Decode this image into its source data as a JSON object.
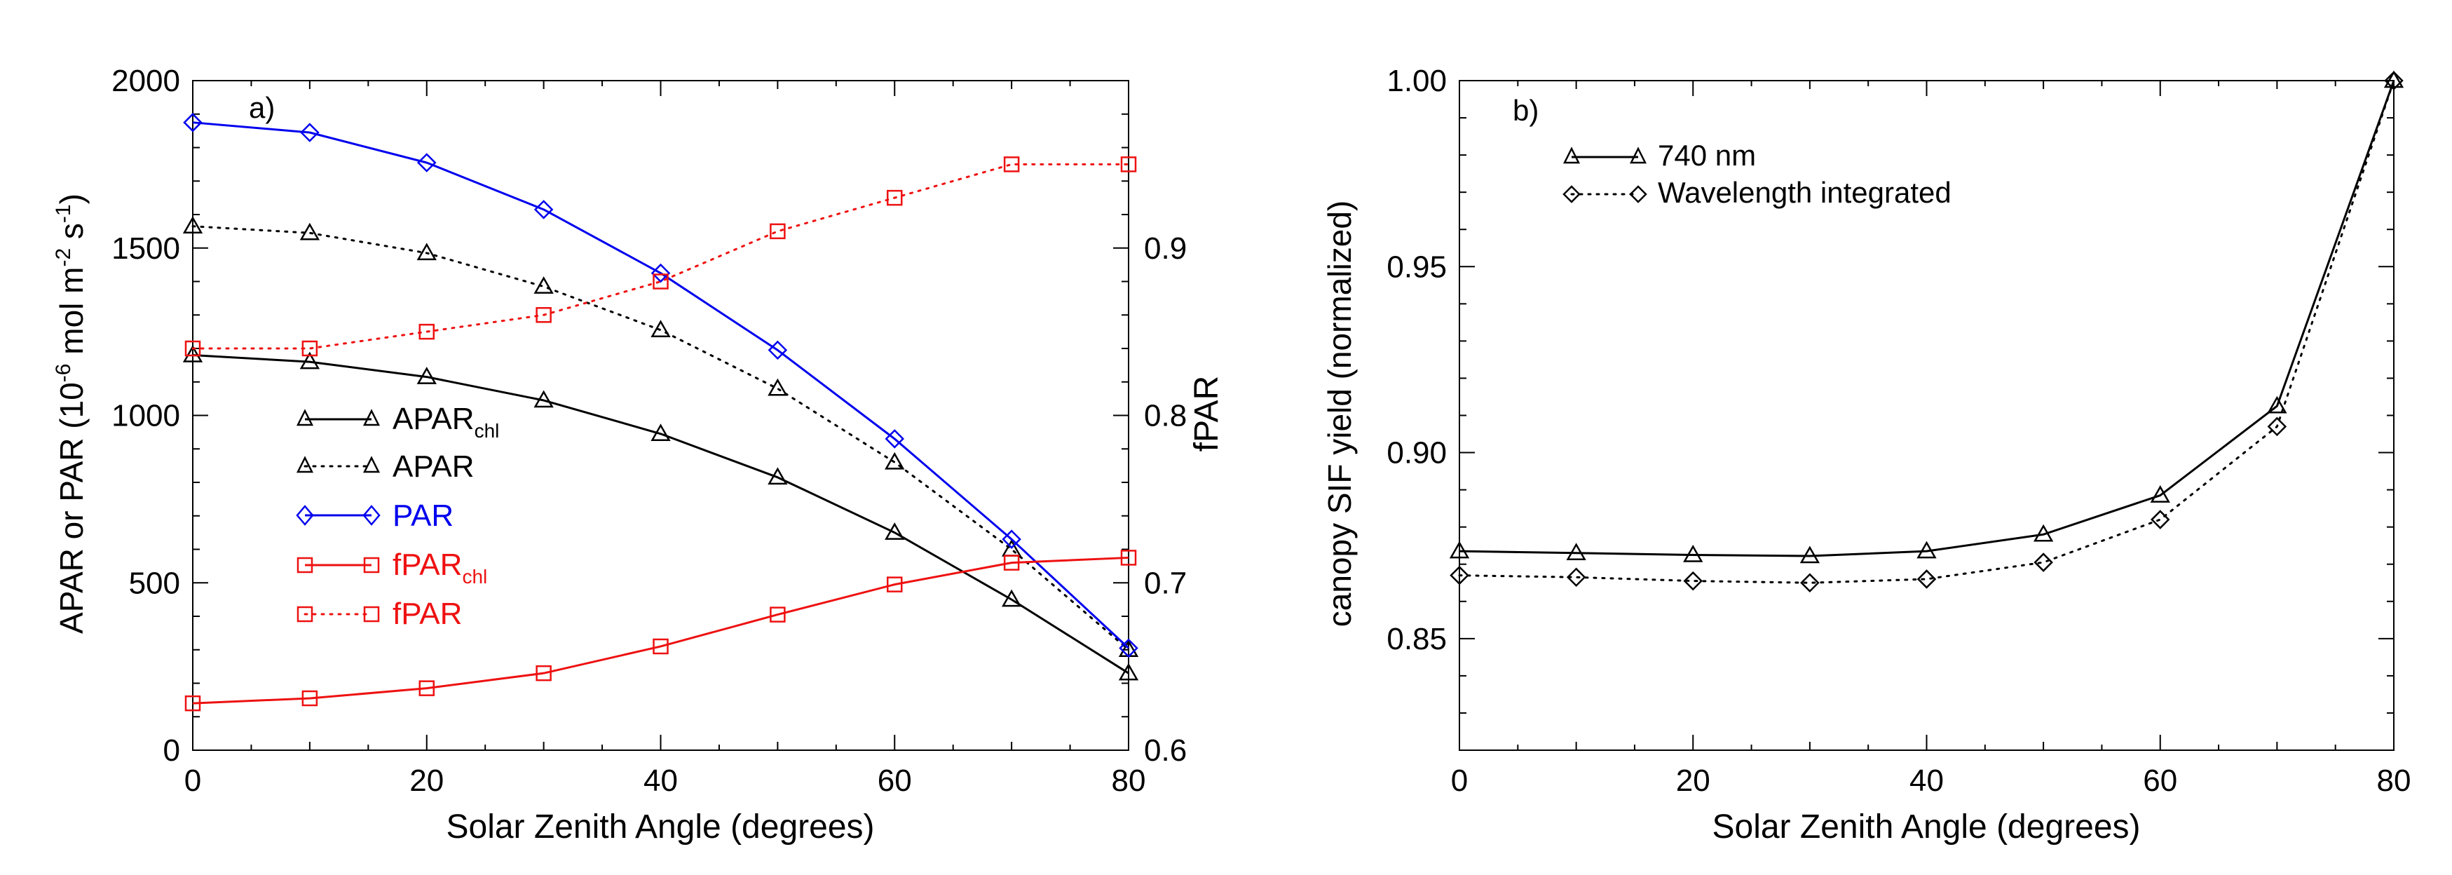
{
  "chart_data": [
    {
      "type": "line",
      "panel_label": "a)",
      "xlabel": "Solar Zenith Angle (degrees)",
      "xlim": [
        0,
        80
      ],
      "xticks": [
        0,
        20,
        40,
        60,
        80
      ],
      "ylabel": {
        "base": "APAR or PAR (10",
        "sup1": "-6",
        "mid": " mol m",
        "sup2": "-2",
        "mid2": " s",
        "sup3": "-1",
        "end": ")"
      },
      "ylim": [
        0,
        2000
      ],
      "yticks": [
        0,
        500,
        1000,
        1500,
        2000
      ],
      "y2label": "fPAR",
      "y2lim": [
        0.6,
        1.0
      ],
      "y2ticks": [
        0.6,
        0.7,
        0.8,
        0.9
      ],
      "x": [
        0,
        10,
        20,
        30,
        40,
        50,
        60,
        70,
        80
      ],
      "series": [
        {
          "name": "APAR",
          "subscript": "chl",
          "axis": "left",
          "color": "#000000",
          "dash": "solid",
          "marker": "triangle",
          "values": [
            1180,
            1160,
            1115,
            1045,
            945,
            815,
            650,
            450,
            230
          ]
        },
        {
          "name": "APAR",
          "subscript": "",
          "axis": "left",
          "color": "#000000",
          "dash": "dotted",
          "marker": "triangle",
          "values": [
            1565,
            1545,
            1485,
            1385,
            1255,
            1080,
            860,
            600,
            300
          ]
        },
        {
          "name": "PAR",
          "subscript": "",
          "axis": "left",
          "color": "#0000ee",
          "dash": "solid",
          "marker": "diamond",
          "values": [
            1875,
            1845,
            1755,
            1615,
            1425,
            1195,
            930,
            630,
            305
          ]
        },
        {
          "name": "fPAR",
          "subscript": "chl",
          "axis": "right",
          "color": "#ee1111",
          "dash": "solid",
          "marker": "square",
          "values": [
            0.628,
            0.631,
            0.637,
            0.646,
            0.662,
            0.681,
            0.699,
            0.712,
            0.715
          ]
        },
        {
          "name": "fPAR",
          "subscript": "",
          "axis": "right",
          "color": "#ee1111",
          "dash": "dotted",
          "marker": "square",
          "values": [
            0.84,
            0.84,
            0.85,
            0.86,
            0.88,
            0.91,
            0.93,
            0.95,
            0.95
          ]
        }
      ]
    },
    {
      "type": "line",
      "panel_label": "b)",
      "xlabel": "Solar Zenith Angle (degrees)",
      "xlim": [
        0,
        80
      ],
      "xticks": [
        0,
        20,
        40,
        60,
        80
      ],
      "ylabel": "canopy SIF yield (normalized)",
      "ylim": [
        0.82,
        1.0
      ],
      "yticks": [
        0.85,
        0.9,
        0.95,
        1.0
      ],
      "ytick_labels": [
        "0.85",
        "0.90",
        "0.95",
        "1.00"
      ],
      "x": [
        0,
        10,
        20,
        30,
        40,
        50,
        60,
        70,
        80
      ],
      "series": [
        {
          "name": "740 nm",
          "color": "#000000",
          "dash": "solid",
          "marker": "triangle",
          "values": [
            0.8735,
            0.873,
            0.8725,
            0.8722,
            0.8735,
            0.878,
            0.8885,
            0.9125,
            1.0
          ]
        },
        {
          "name": "Wavelength integrated",
          "color": "#000000",
          "dash": "dotted",
          "marker": "diamond",
          "values": [
            0.867,
            0.8665,
            0.8655,
            0.865,
            0.866,
            0.8705,
            0.882,
            0.907,
            1.0
          ]
        }
      ]
    }
  ]
}
